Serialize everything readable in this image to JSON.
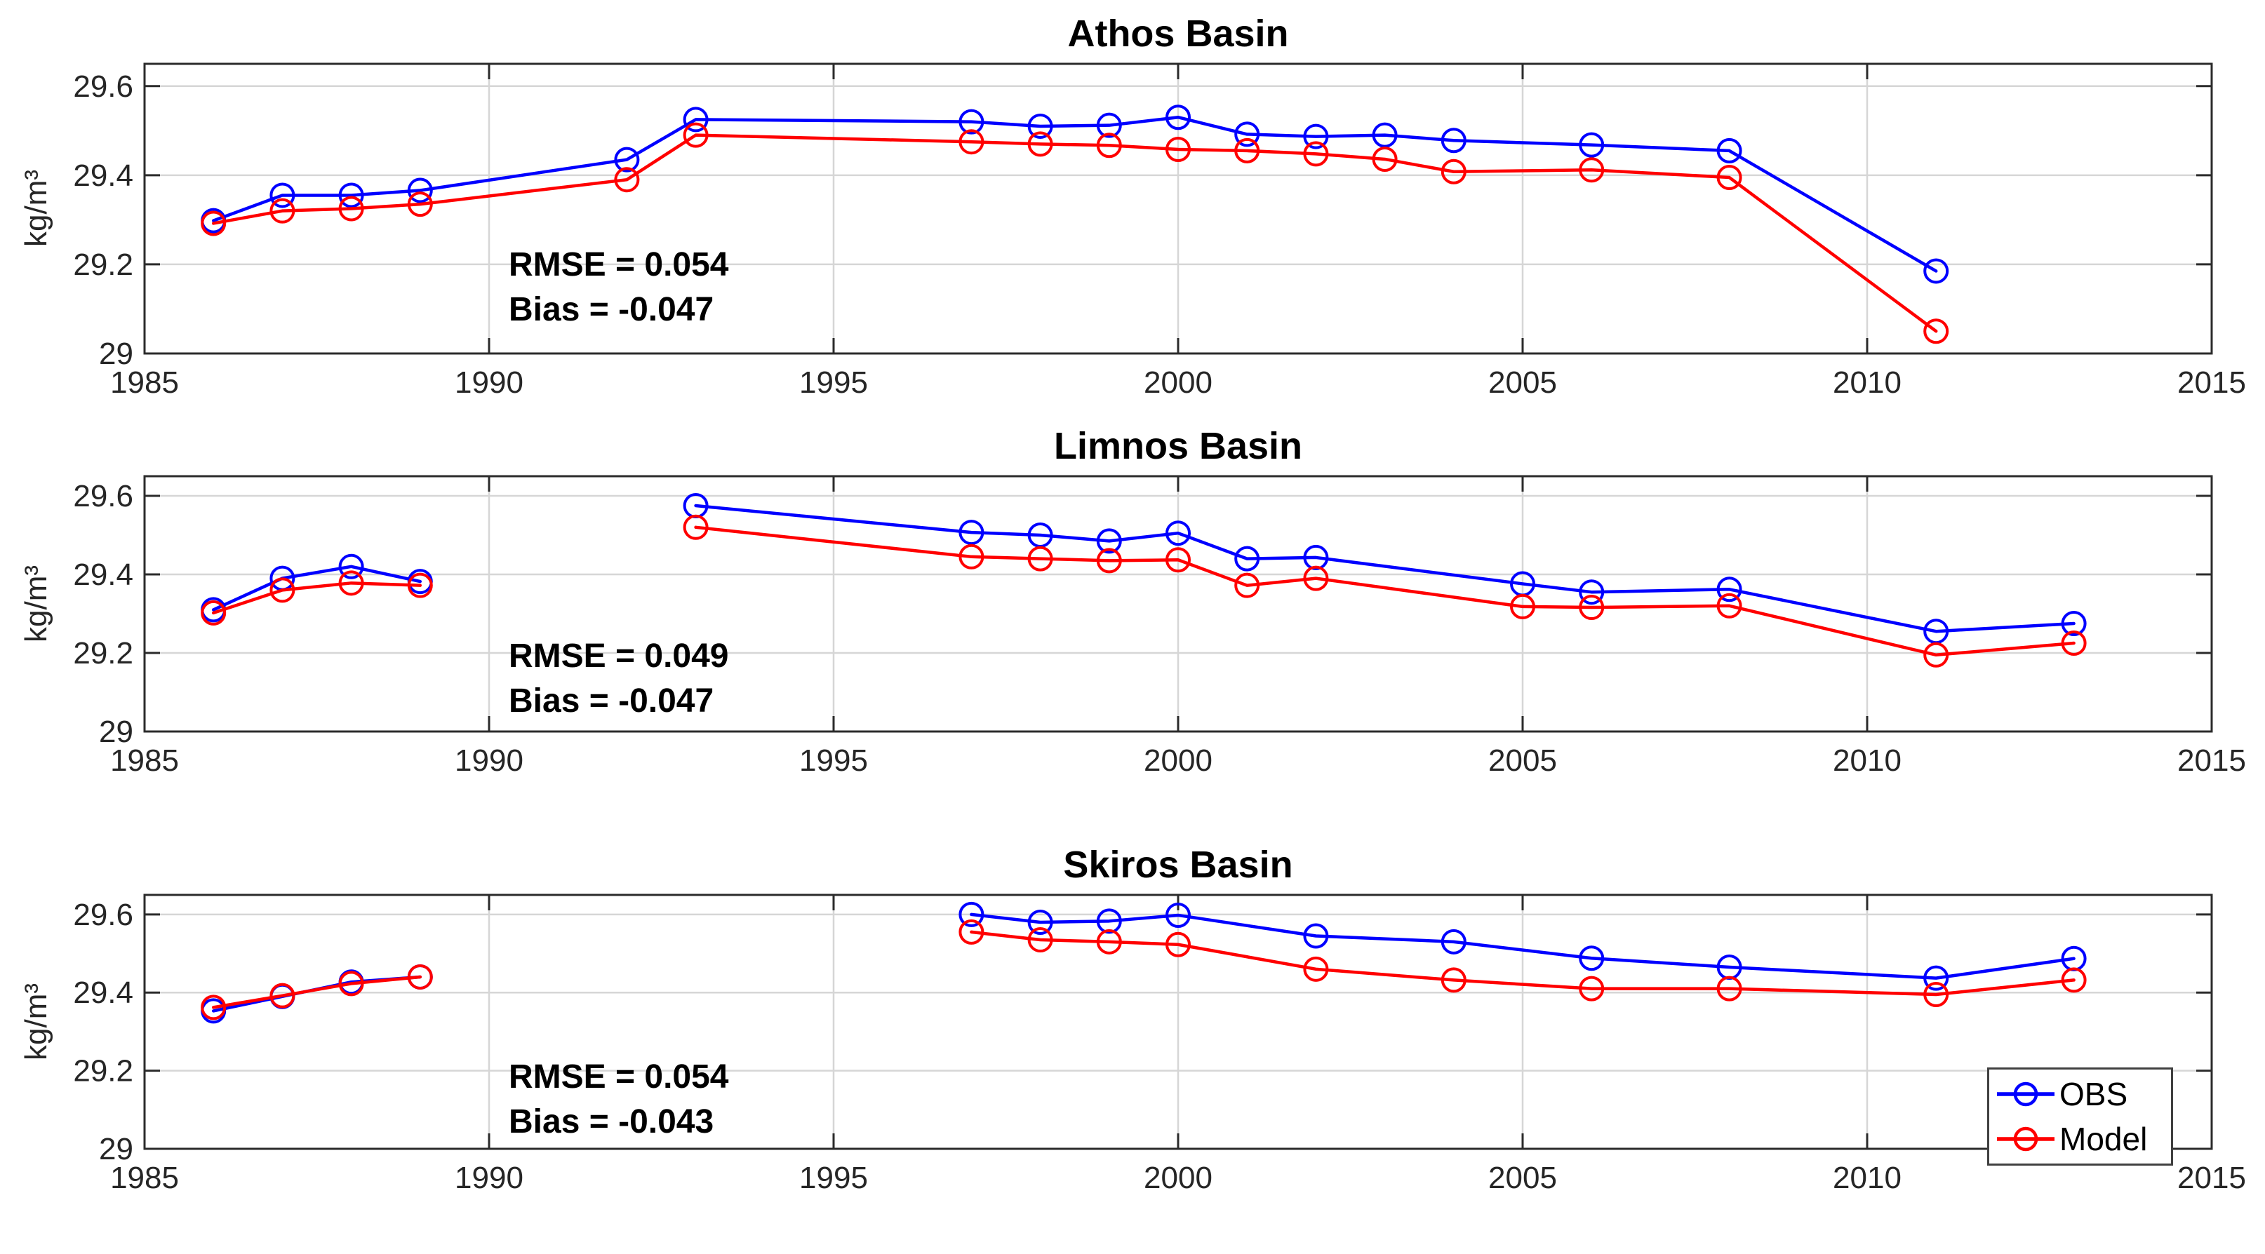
{
  "figure": {
    "background": "#ffffff",
    "colors": {
      "obs": "#0000ff",
      "model": "#ff0000",
      "grid": "#d6d6d6",
      "axis": "#2b2b2b",
      "tick_label": "#262626"
    }
  },
  "legend": {
    "position": "bottom-right-of-third-subplot",
    "entries": [
      {
        "label": "OBS",
        "color": "#0000ff"
      },
      {
        "label": "Model",
        "color": "#ff0000"
      }
    ]
  },
  "chart_data": [
    {
      "type": "line",
      "title": "Athos Basin",
      "ylabel": "kg/m³",
      "xlim": [
        1985,
        2015
      ],
      "ylim": [
        29,
        29.65
      ],
      "xticks": [
        1985,
        1990,
        1995,
        2000,
        2005,
        2010,
        2015
      ],
      "yticks": [
        29,
        29.2,
        29.4,
        29.6
      ],
      "grid": true,
      "rmse_label": "RMSE = 0.054",
      "bias_label": "Bias = -0.047",
      "marker": "circle",
      "series": [
        {
          "name": "OBS",
          "color": "#0000ff",
          "segments": [
            {
              "x": [
                1986,
                1987,
                1988,
                1989,
                1992,
                1993,
                1997,
                1998,
                1999,
                2000,
                2001,
                2002,
                2003,
                2004,
                2006,
                2008,
                2011
              ],
              "y": [
                29.298,
                29.355,
                29.355,
                29.366,
                29.435,
                29.525,
                29.52,
                29.51,
                29.512,
                29.53,
                29.492,
                29.487,
                29.49,
                29.478,
                29.468,
                29.455,
                29.185
              ]
            }
          ]
        },
        {
          "name": "Model",
          "color": "#ff0000",
          "segments": [
            {
              "x": [
                1986,
                1987,
                1988,
                1989,
                1992,
                1993,
                1997,
                1998,
                1999,
                2000,
                2001,
                2002,
                2003,
                2004,
                2006,
                2008,
                2011
              ],
              "y": [
                29.292,
                29.32,
                29.325,
                29.335,
                29.39,
                29.49,
                29.475,
                29.47,
                29.467,
                29.458,
                29.455,
                29.448,
                29.436,
                29.408,
                29.412,
                29.395,
                29.05
              ]
            }
          ]
        }
      ]
    },
    {
      "type": "line",
      "title": "Limnos Basin",
      "ylabel": "kg/m³",
      "xlim": [
        1985,
        2015
      ],
      "ylim": [
        29,
        29.65
      ],
      "xticks": [
        1985,
        1990,
        1995,
        2000,
        2005,
        2010,
        2015
      ],
      "yticks": [
        29,
        29.2,
        29.4,
        29.6
      ],
      "grid": true,
      "rmse_label": "RMSE = 0.049",
      "bias_label": "Bias = -0.047",
      "marker": "circle",
      "series": [
        {
          "name": "OBS",
          "color": "#0000ff",
          "segments": [
            {
              "x": [
                1986,
                1987,
                1988,
                1989
              ],
              "y": [
                29.31,
                29.39,
                29.42,
                29.382
              ]
            },
            {
              "x": [
                1993,
                1997,
                1998,
                1999,
                2000,
                2001,
                2002,
                2005,
                2006,
                2008,
                2011,
                2013
              ],
              "y": [
                29.575,
                29.507,
                29.5,
                29.485,
                29.505,
                29.44,
                29.443,
                29.376,
                29.355,
                29.362,
                29.255,
                29.275
              ]
            }
          ]
        },
        {
          "name": "Model",
          "color": "#ff0000",
          "segments": [
            {
              "x": [
                1986,
                1987,
                1988,
                1989
              ],
              "y": [
                29.302,
                29.36,
                29.378,
                29.372
              ]
            },
            {
              "x": [
                1993,
                1997,
                1998,
                1999,
                2000,
                2001,
                2002,
                2005,
                2006,
                2008,
                2011,
                2013
              ],
              "y": [
                29.52,
                29.445,
                29.44,
                29.435,
                29.437,
                29.372,
                29.39,
                29.318,
                29.316,
                29.32,
                29.195,
                29.225
              ]
            }
          ]
        }
      ]
    },
    {
      "type": "line",
      "title": "Skiros Basin",
      "ylabel": "kg/m³",
      "xlim": [
        1985,
        2015
      ],
      "ylim": [
        29,
        29.65
      ],
      "xticks": [
        1985,
        1990,
        1995,
        2000,
        2005,
        2010,
        2015
      ],
      "yticks": [
        29,
        29.2,
        29.4,
        29.6
      ],
      "grid": true,
      "rmse_label": "RMSE = 0.054",
      "bias_label": "Bias = -0.043",
      "marker": "circle",
      "series": [
        {
          "name": "OBS",
          "color": "#0000ff",
          "segments": [
            {
              "x": [
                1986,
                1987,
                1988,
                1989
              ],
              "y": [
                29.353,
                29.39,
                29.427,
                29.44
              ]
            },
            {
              "x": [
                1997,
                1998,
                1999,
                2000,
                2002,
                2004,
                2006,
                2008,
                2011,
                2013
              ],
              "y": [
                29.6,
                29.58,
                29.583,
                29.598,
                29.545,
                29.53,
                29.488,
                29.465,
                29.437,
                29.487
              ]
            }
          ]
        },
        {
          "name": "Model",
          "color": "#ff0000",
          "segments": [
            {
              "x": [
                1986,
                1987,
                1988,
                1989
              ],
              "y": [
                29.362,
                29.392,
                29.423,
                29.44
              ]
            },
            {
              "x": [
                1997,
                1998,
                1999,
                2000,
                2002,
                2004,
                2006,
                2008,
                2011,
                2013
              ],
              "y": [
                29.555,
                29.535,
                29.53,
                29.523,
                29.46,
                29.432,
                29.41,
                29.41,
                29.395,
                29.432
              ]
            }
          ]
        }
      ]
    }
  ]
}
